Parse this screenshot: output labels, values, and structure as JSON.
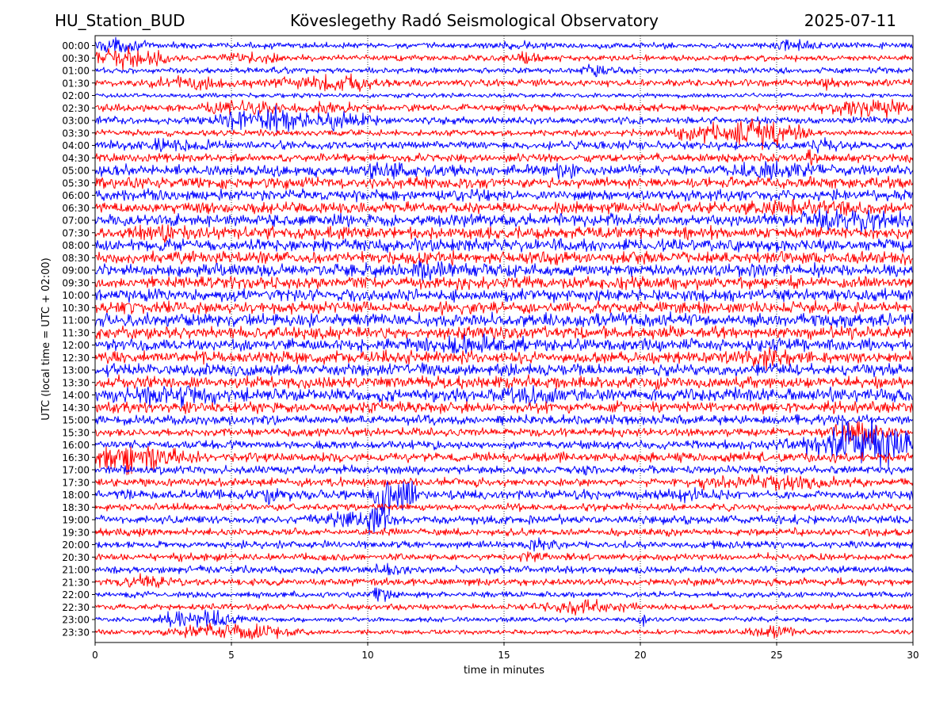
{
  "header": {
    "station": "HU_Station_BUD",
    "observatory": "Köveslegethy Radó Seismological Observatory",
    "date": "2025-07-11"
  },
  "chart_data": {
    "type": "line",
    "title": "Köveslegethy Radó Seismological Observatory",
    "xlabel": "time in minutes",
    "ylabel": "UTC (local time = UTC + 02:00)",
    "xlim": [
      0,
      30
    ],
    "x_ticks": [
      "0",
      "5",
      "10",
      "15",
      "20",
      "25",
      "30"
    ],
    "x_gridlines": [
      5,
      10,
      15,
      20,
      25
    ],
    "grid": "dotted vertical",
    "series_colors": [
      "#0000ff",
      "#ff0000"
    ],
    "rows": [
      {
        "label": "00:00",
        "amplitude": 0.25,
        "bursts": [
          [
            0.5,
            1.2,
            0.4
          ],
          [
            15.7,
            0.6,
            0.3
          ],
          [
            25.5,
            0.8,
            0.3
          ]
        ]
      },
      {
        "label": "00:30",
        "amplitude": 0.25,
        "bursts": [
          [
            1.0,
            1.5,
            0.6
          ],
          [
            5.8,
            1.0,
            0.3
          ],
          [
            15.8,
            0.6,
            0.3
          ]
        ]
      },
      {
        "label": "01:00",
        "amplitude": 0.25,
        "bursts": [
          [
            18.6,
            0.8,
            0.3
          ]
        ]
      },
      {
        "label": "01:30",
        "amplitude": 0.3,
        "bursts": [
          [
            3.5,
            1.5,
            0.4
          ],
          [
            7.5,
            1.2,
            0.4
          ],
          [
            9.3,
            0.8,
            0.5
          ],
          [
            26.9,
            0.4,
            0.4
          ]
        ]
      },
      {
        "label": "02:00",
        "amplitude": 0.2,
        "bursts": []
      },
      {
        "label": "02:30",
        "amplitude": 0.3,
        "bursts": [
          [
            5.3,
            1.2,
            0.4
          ],
          [
            8.7,
            1.0,
            0.3
          ],
          [
            28.3,
            1.5,
            0.6
          ]
        ]
      },
      {
        "label": "03:00",
        "amplitude": 0.3,
        "bursts": [
          [
            5.5,
            1.2,
            0.5
          ],
          [
            6.8,
            1.0,
            0.6
          ],
          [
            9.0,
            1.2,
            0.5
          ]
        ]
      },
      {
        "label": "03:30",
        "amplitude": 0.25,
        "bursts": [
          [
            22.5,
            1.5,
            0.4
          ],
          [
            24.0,
            1.5,
            0.6
          ],
          [
            25.0,
            1.0,
            0.5
          ]
        ]
      },
      {
        "label": "04:00",
        "amplitude": 0.35,
        "bursts": [
          [
            2.8,
            1.0,
            0.4
          ],
          [
            26.7,
            0.6,
            0.3
          ]
        ]
      },
      {
        "label": "04:30",
        "amplitude": 0.35,
        "bursts": [
          [
            26.2,
            0.3,
            0.4
          ]
        ]
      },
      {
        "label": "05:00",
        "amplitude": 0.45,
        "bursts": [
          [
            10.6,
            0.8,
            0.5
          ],
          [
            17.0,
            0.5,
            0.4
          ],
          [
            24.8,
            1.0,
            0.5
          ]
        ]
      },
      {
        "label": "05:30",
        "amplitude": 0.45,
        "bursts": []
      },
      {
        "label": "06:00",
        "amplitude": 0.45,
        "bursts": []
      },
      {
        "label": "06:30",
        "amplitude": 0.45,
        "bursts": [
          [
            26.0,
            2.0,
            0.4
          ]
        ]
      },
      {
        "label": "07:00",
        "amplitude": 0.5,
        "bursts": [
          [
            27.5,
            2.0,
            0.5
          ]
        ]
      },
      {
        "label": "07:30",
        "amplitude": 0.5,
        "bursts": [
          [
            2.5,
            1.0,
            0.4
          ]
        ]
      },
      {
        "label": "08:00",
        "amplitude": 0.5,
        "bursts": []
      },
      {
        "label": "08:30",
        "amplitude": 0.5,
        "bursts": []
      },
      {
        "label": "09:00",
        "amplitude": 0.5,
        "bursts": [
          [
            12.0,
            1.0,
            0.4
          ]
        ]
      },
      {
        "label": "09:30",
        "amplitude": 0.5,
        "bursts": []
      },
      {
        "label": "10:00",
        "amplitude": 0.5,
        "bursts": []
      },
      {
        "label": "10:30",
        "amplitude": 0.5,
        "bursts": []
      },
      {
        "label": "11:00",
        "amplitude": 0.55,
        "bursts": []
      },
      {
        "label": "11:30",
        "amplitude": 0.5,
        "bursts": []
      },
      {
        "label": "12:00",
        "amplitude": 0.5,
        "bursts": [
          [
            14.0,
            1.5,
            0.4
          ]
        ]
      },
      {
        "label": "12:30",
        "amplitude": 0.5,
        "bursts": [
          [
            24.3,
            1.0,
            0.5
          ]
        ]
      },
      {
        "label": "13:00",
        "amplitude": 0.5,
        "bursts": []
      },
      {
        "label": "13:30",
        "amplitude": 0.5,
        "bursts": []
      },
      {
        "label": "14:00",
        "amplitude": 0.55,
        "bursts": [
          [
            2.8,
            1.5,
            0.5
          ],
          [
            15.8,
            0.8,
            0.5
          ]
        ]
      },
      {
        "label": "14:30",
        "amplitude": 0.45,
        "bursts": []
      },
      {
        "label": "15:00",
        "amplitude": 0.4,
        "bursts": []
      },
      {
        "label": "15:30",
        "amplitude": 0.35,
        "bursts": [
          [
            28.0,
            0.8,
            0.8
          ]
        ]
      },
      {
        "label": "16:00",
        "amplitude": 0.35,
        "bursts": [
          [
            27.6,
            1.8,
            1.4
          ],
          [
            29.0,
            1.2,
            0.9
          ]
        ]
      },
      {
        "label": "16:30",
        "amplitude": 0.4,
        "bursts": [
          [
            1.0,
            1.3,
            0.9
          ],
          [
            2.5,
            1.0,
            0.4
          ]
        ]
      },
      {
        "label": "17:00",
        "amplitude": 0.35,
        "bursts": []
      },
      {
        "label": "17:30",
        "amplitude": 0.35,
        "bursts": [
          [
            23.0,
            1.0,
            0.4
          ],
          [
            25.5,
            1.5,
            0.4
          ]
        ]
      },
      {
        "label": "18:00",
        "amplitude": 0.4,
        "bursts": [
          [
            10.6,
            0.4,
            1.1
          ],
          [
            11.4,
            0.4,
            1.0
          ],
          [
            6.3,
            0.5,
            0.4
          ],
          [
            22.0,
            0.5,
            0.4
          ]
        ]
      },
      {
        "label": "18:30",
        "amplitude": 0.3,
        "bursts": []
      },
      {
        "label": "19:00",
        "amplitude": 0.35,
        "bursts": [
          [
            9.4,
            1.2,
            0.5
          ],
          [
            10.3,
            0.5,
            0.6
          ]
        ]
      },
      {
        "label": "19:30",
        "amplitude": 0.3,
        "bursts": []
      },
      {
        "label": "20:00",
        "amplitude": 0.3,
        "bursts": [
          [
            16.3,
            0.5,
            0.4
          ]
        ]
      },
      {
        "label": "20:30",
        "amplitude": 0.3,
        "bursts": [
          [
            16.2,
            0.5,
            0.3
          ]
        ]
      },
      {
        "label": "21:00",
        "amplitude": 0.3,
        "bursts": [
          [
            10.7,
            0.5,
            0.3
          ]
        ]
      },
      {
        "label": "21:30",
        "amplitude": 0.3,
        "bursts": [
          [
            2.0,
            1.0,
            0.3
          ]
        ]
      },
      {
        "label": "22:00",
        "amplitude": 0.25,
        "bursts": [
          [
            10.4,
            0.4,
            0.5
          ]
        ]
      },
      {
        "label": "22:30",
        "amplitude": 0.25,
        "bursts": [
          [
            18.0,
            1.5,
            0.4
          ]
        ]
      },
      {
        "label": "23:00",
        "amplitude": 0.2,
        "bursts": [
          [
            3.2,
            0.8,
            0.6
          ],
          [
            4.6,
            0.8,
            0.5
          ],
          [
            20.1,
            0.3,
            0.4
          ]
        ]
      },
      {
        "label": "23:30",
        "amplitude": 0.2,
        "bursts": [
          [
            4.0,
            1.5,
            0.4
          ],
          [
            6.0,
            1.2,
            0.5
          ],
          [
            24.8,
            0.8,
            0.4
          ]
        ]
      }
    ]
  }
}
